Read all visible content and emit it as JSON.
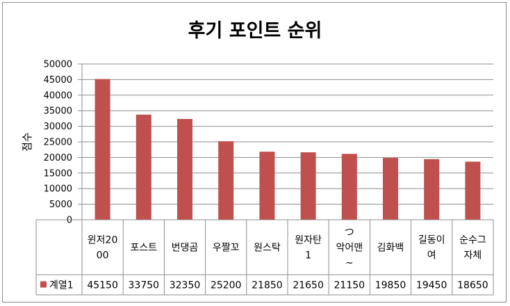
{
  "chart_data": {
    "type": "bar",
    "title": "후기 포인트 순위",
    "ylabel": "점수",
    "xlabel": "",
    "ylim": [
      0,
      50000
    ],
    "yticks": [
      0,
      5000,
      10000,
      15000,
      20000,
      25000,
      30000,
      35000,
      40000,
      45000,
      50000
    ],
    "grid": true,
    "legend": "bottom-left data table",
    "categories": [
      [
        "윈저20",
        "00"
      ],
      [
        "포스트"
      ],
      [
        "번댕곰"
      ],
      [
        "우짤꼬"
      ],
      [
        "원스탁"
      ],
      [
        "원자탄",
        "1"
      ],
      [
        "つ",
        "악어맨",
        "~"
      ],
      [
        "김화백"
      ],
      [
        "길동이",
        "여"
      ],
      [
        "순수그",
        "자체"
      ]
    ],
    "series": [
      {
        "name": "계열1",
        "color": "#c0504d",
        "values": [
          45150,
          33750,
          32350,
          25200,
          21850,
          21650,
          21150,
          19850,
          19450,
          18650
        ]
      }
    ]
  }
}
